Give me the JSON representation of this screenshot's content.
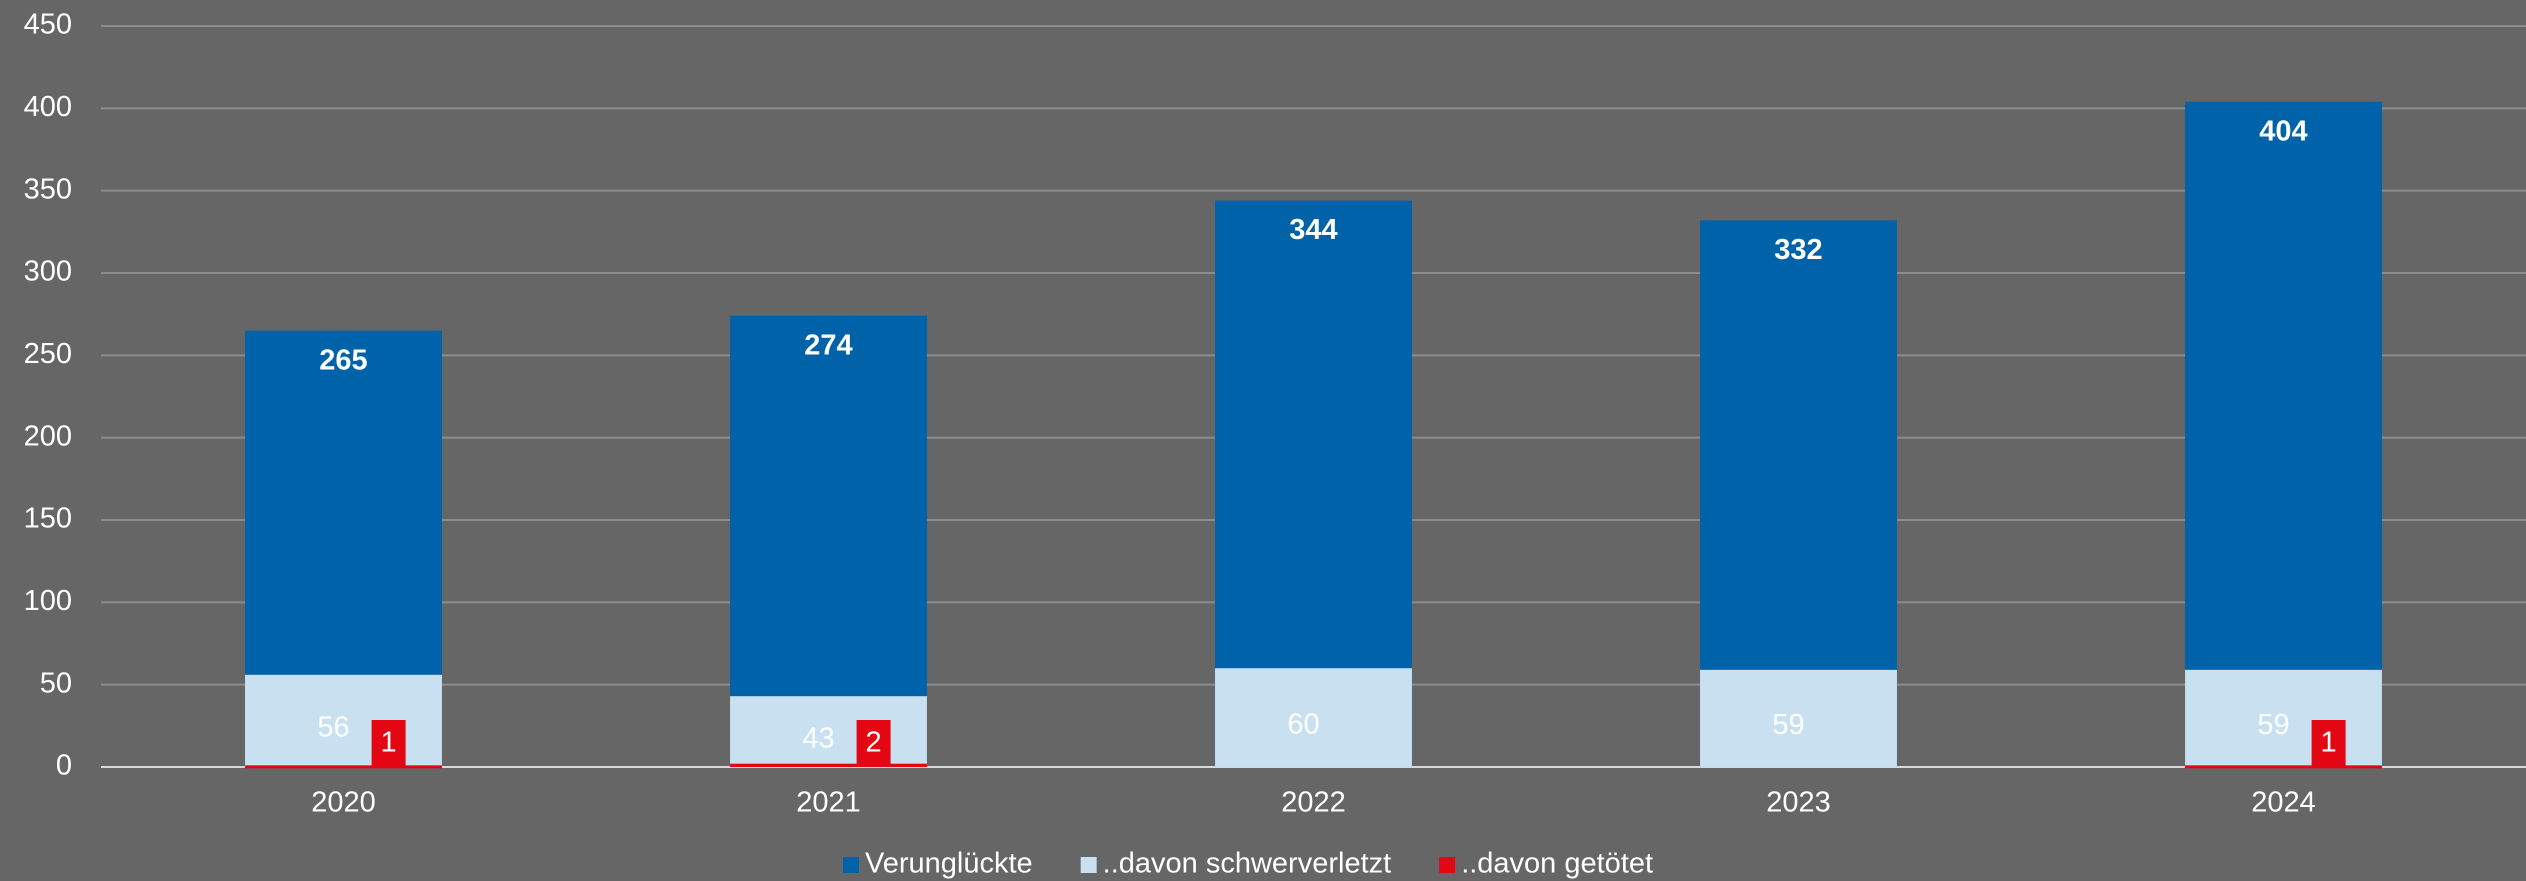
{
  "chart_data": {
    "type": "bar",
    "categories": [
      "2020",
      "2021",
      "2022",
      "2023",
      "2024"
    ],
    "series": [
      {
        "name": "Verunglückte",
        "color": "#0062a8",
        "values": [
          265,
          274,
          344,
          332,
          404
        ]
      },
      {
        "name": "..davon schwerverletzt",
        "color": "#c8e0f0",
        "values": [
          56,
          43,
          60,
          59,
          59
        ]
      },
      {
        "name": "..davon getötet",
        "color": "#e30613",
        "values": [
          1,
          2,
          null,
          null,
          1
        ]
      }
    ],
    "ylim": [
      0,
      450
    ],
    "yticks": [
      0,
      50,
      100,
      150,
      200,
      250,
      300,
      350,
      400,
      450
    ],
    "grid": true,
    "legend": "bottom"
  }
}
